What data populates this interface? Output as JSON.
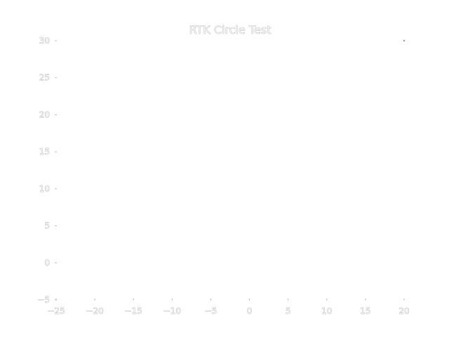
{
  "chart_data": {
    "type": "line",
    "title": "RTK Circle Test",
    "xlabel": "",
    "ylabel": "",
    "xlim": [
      -25,
      20
    ],
    "ylim": [
      -5,
      30
    ],
    "x_ticks": [
      -25,
      -20,
      -15,
      -10,
      -5,
      0,
      5,
      10,
      15,
      20
    ],
    "y_ticks": [
      -5,
      0,
      5,
      10,
      15,
      20,
      25,
      30
    ],
    "x_tick_labels": [
      "−25",
      "−20",
      "−15",
      "−10",
      "−5",
      "0",
      "5",
      "10",
      "15",
      "20"
    ],
    "y_tick_labels": [
      "−5",
      "0",
      "5",
      "10",
      "15",
      "20",
      "25",
      "30"
    ],
    "series": [
      {
        "x": [
          20
        ],
        "y": [
          30
        ]
      }
    ],
    "grid": false,
    "colors": {
      "text_fill": "#f4f4f4",
      "text_outline": "#9a9a9a",
      "tick": "#bdbdbd",
      "mark": "#9a9a9a"
    }
  }
}
